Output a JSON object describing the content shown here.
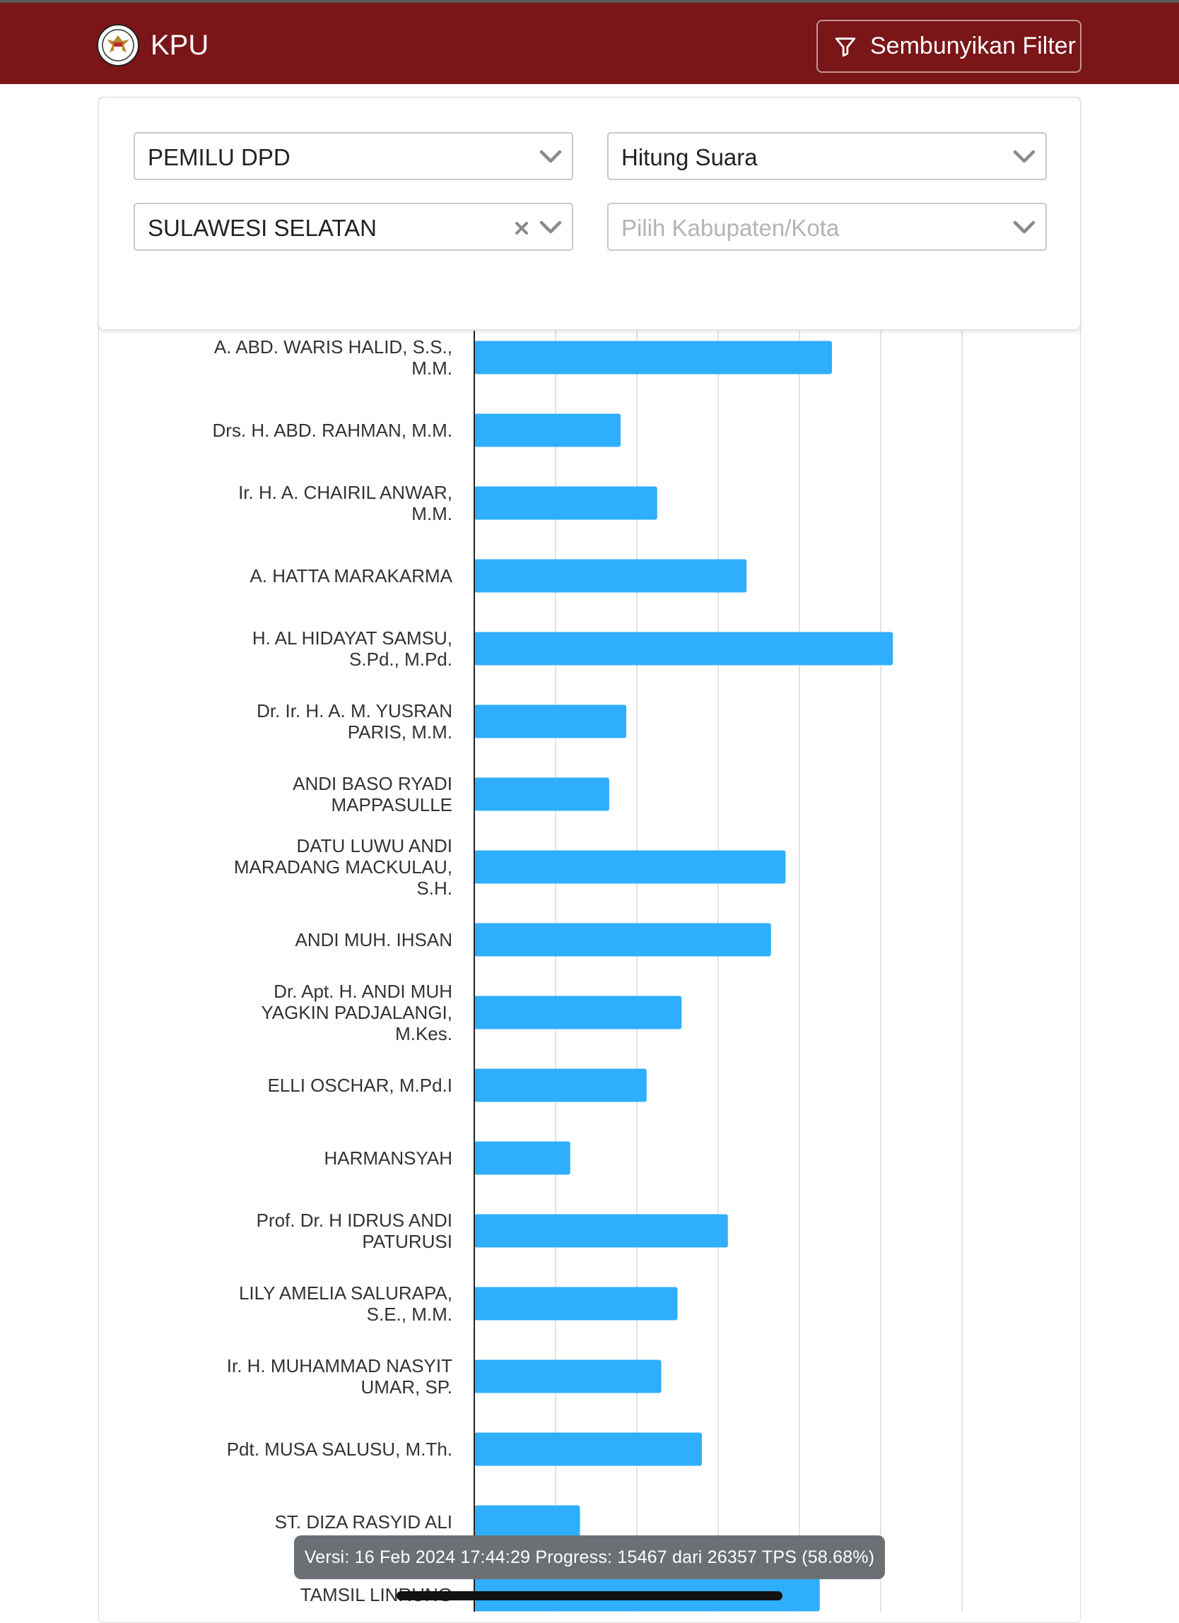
{
  "header": {
    "brand": "KPU",
    "filter_button_label": "Sembunyikan Filter",
    "color": "#7a1518"
  },
  "filters": {
    "election": {
      "value": "PEMILU DPD"
    },
    "mode": {
      "value": "Hitung Suara"
    },
    "province": {
      "value": "SULAWESI SELATAN"
    },
    "regency": {
      "placeholder": "Pilih Kabupaten/Kota"
    }
  },
  "chart_data": {
    "type": "bar",
    "orientation": "horizontal",
    "bar_color": "#2eaefc",
    "grid": true,
    "xlim": [
      0,
      6.5
    ],
    "gridlines": [
      1,
      2,
      3,
      4,
      5,
      6
    ],
    "categories": [
      "A. ABD. WARIS HALID, S.S., M.M.",
      "Drs. H. ABD. RAHMAN, M.M.",
      "Ir. H. A. CHAIRIL ANWAR, M.M.",
      "A. HATTA MARAKARMA",
      "H. AL HIDAYAT SAMSU, S.Pd., M.Pd.",
      "Dr. Ir. H. A. M. YUSRAN PARIS, M.M.",
      "ANDI BASO RYADI MAPPASULLE",
      "DATU LUWU ANDI MARADANG MACKULAU, S.H.",
      "ANDI MUH. IHSAN",
      "Dr. Apt. H. ANDI MUH YAGKIN PADJALANGI, M.Kes.",
      "ELLI OSCHAR, M.Pd.I",
      "HARMANSYAH",
      "Prof. Dr. H IDRUS ANDI PATURUSI",
      "LILY AMELIA SALURAPA, S.E., M.M.",
      "Ir. H. MUHAMMAD NASYIT UMAR, SP.",
      "Pdt. MUSA SALUSU, M.Th.",
      "ST. DIZA RASYID ALI",
      "TAMSIL LINRUNG"
    ],
    "label_lines": [
      [
        "A. ABD. WARIS HALID, S.S.,",
        "M.M."
      ],
      [
        "Drs. H. ABD. RAHMAN, M.M."
      ],
      [
        "Ir. H. A. CHAIRIL ANWAR,",
        "M.M."
      ],
      [
        "A. HATTA MARAKARMA"
      ],
      [
        "H. AL HIDAYAT SAMSU,",
        "S.Pd., M.Pd."
      ],
      [
        "Dr. Ir. H. A. M. YUSRAN",
        "PARIS, M.M."
      ],
      [
        "ANDI BASO RYADI",
        "MAPPASULLE"
      ],
      [
        "DATU LUWU ANDI",
        "MARADANG MACKULAU,",
        "S.H."
      ],
      [
        "ANDI MUH. IHSAN"
      ],
      [
        "Dr. Apt. H. ANDI MUH",
        "YAGKIN PADJALANGI,",
        "M.Kes."
      ],
      [
        "ELLI OSCHAR, M.Pd.I"
      ],
      [
        "HARMANSYAH"
      ],
      [
        "Prof. Dr. H IDRUS ANDI",
        "PATURUSI"
      ],
      [
        "LILY AMELIA SALURAPA,",
        "S.E., M.M."
      ],
      [
        "Ir. H. MUHAMMAD NASYIT",
        "UMAR, SP."
      ],
      [
        "Pdt. MUSA SALUSU, M.Th."
      ],
      [
        "ST. DIZA RASYID ALI"
      ],
      [
        "TAMSIL LINRUNG"
      ]
    ],
    "values": [
      4.4,
      1.8,
      2.25,
      3.35,
      5.15,
      1.87,
      1.66,
      3.83,
      3.65,
      2.55,
      2.12,
      1.18,
      3.12,
      2.5,
      2.3,
      2.8,
      1.3,
      4.25
    ]
  },
  "status": {
    "text": "Versi: 16 Feb 2024 17:44:29 Progress: 15467 dari 26357 TPS (58.68%)"
  }
}
